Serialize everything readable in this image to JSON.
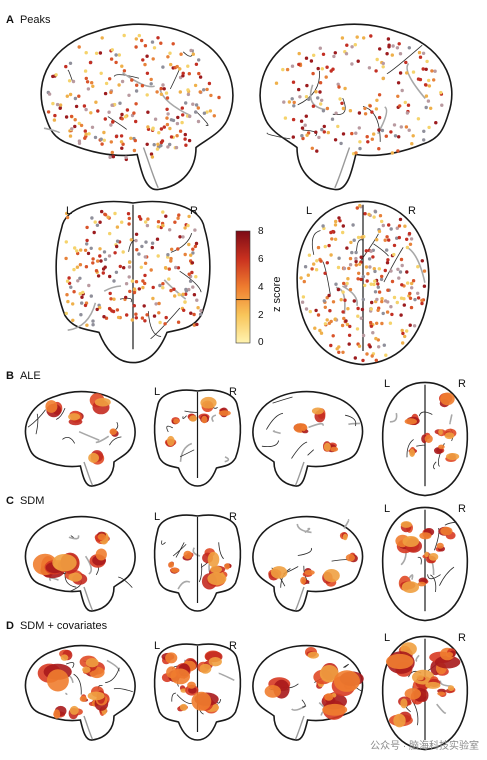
{
  "panels": {
    "a": {
      "letter": "A",
      "title": "Peaks"
    },
    "b": {
      "letter": "B",
      "title": "ALE"
    },
    "c": {
      "letter": "C",
      "title": "SDM"
    },
    "d": {
      "letter": "D",
      "title": "SDM + covariates"
    }
  },
  "orientation": {
    "left": "L",
    "right": "R"
  },
  "colorbar": {
    "title": "z score",
    "ticks": [
      "8",
      "6",
      "4",
      "2",
      "0"
    ],
    "min": 0,
    "max": 8,
    "threshold": 3.1,
    "colors": [
      "#fff3b0",
      "#f8c55a",
      "#ef7d2f",
      "#c9311f",
      "#7d0b16"
    ]
  },
  "watermark": "公众号 · 脑海科技实验室"
}
